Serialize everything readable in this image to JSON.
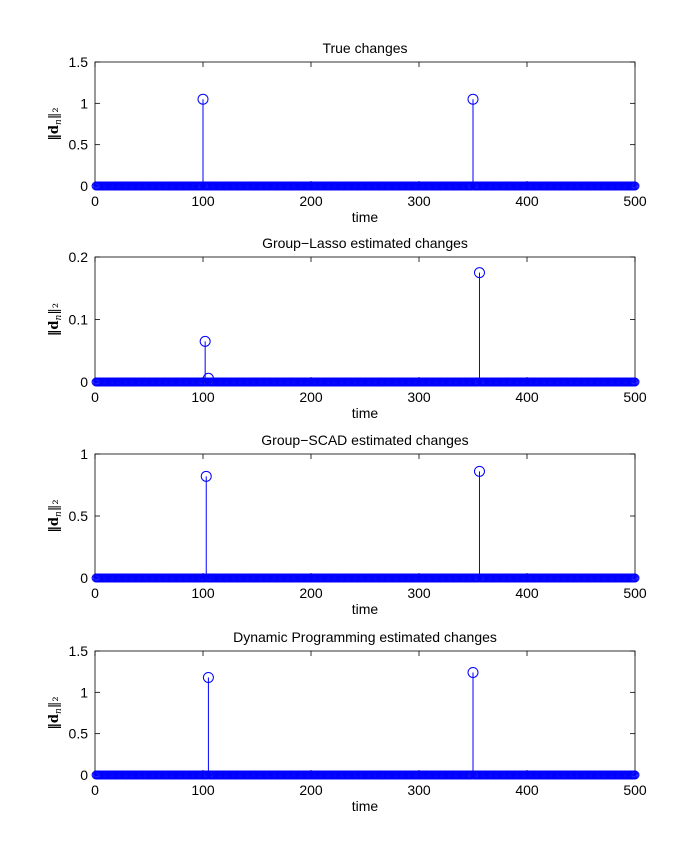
{
  "chart_data": [
    {
      "type": "stem",
      "title": "True changes",
      "xlabel": "time",
      "ylabel": "‖d",
      "ylabel_sub": "n",
      "ylabel_end": "‖₂",
      "xlim": [
        0,
        500
      ],
      "ylim": [
        0,
        1.5
      ],
      "xticks": [
        "0",
        "100",
        "200",
        "300",
        "400",
        "500"
      ],
      "yticks": [
        "0",
        "0.5",
        "1",
        "1.5"
      ],
      "ytick_values": [
        0,
        0.5,
        1,
        1.5
      ],
      "n_points": 500,
      "spikes": [
        {
          "x": 100,
          "y": 1.05
        },
        {
          "x": 350,
          "y": 1.05
        }
      ],
      "color": "#0000ff"
    },
    {
      "type": "stem",
      "title": "Group−Lasso estimated changes",
      "xlabel": "time",
      "ylabel": "‖d",
      "ylabel_sub": "n",
      "ylabel_end": "‖₂",
      "xlim": [
        0,
        500
      ],
      "ylim": [
        0,
        0.2
      ],
      "xticks": [
        "0",
        "100",
        "200",
        "300",
        "400",
        "500"
      ],
      "yticks": [
        "0",
        "0.1",
        "0.2"
      ],
      "ytick_values": [
        0,
        0.1,
        0.2
      ],
      "n_points": 500,
      "spikes": [
        {
          "x": 102,
          "y": 0.065
        },
        {
          "x": 105,
          "y": 0.006
        },
        {
          "x": 356,
          "y": 0.175
        }
      ],
      "color": "#0000ff"
    },
    {
      "type": "stem",
      "title": "Group−SCAD estimated changes",
      "xlabel": "time",
      "ylabel": "‖d",
      "ylabel_sub": "n",
      "ylabel_end": "‖₂",
      "xlim": [
        0,
        500
      ],
      "ylim": [
        0,
        1
      ],
      "xticks": [
        "0",
        "100",
        "200",
        "300",
        "400",
        "500"
      ],
      "yticks": [
        "0",
        "0.5",
        "1"
      ],
      "ytick_values": [
        0,
        0.5,
        1
      ],
      "n_points": 500,
      "spikes": [
        {
          "x": 103,
          "y": 0.82
        },
        {
          "x": 356,
          "y": 0.86
        }
      ],
      "color": "#0000ff"
    },
    {
      "type": "stem",
      "title": "Dynamic Programming estimated changes",
      "xlabel": "time",
      "ylabel": "‖d",
      "ylabel_sub": "n",
      "ylabel_end": "‖₂",
      "xlim": [
        0,
        500
      ],
      "ylim": [
        0,
        1.5
      ],
      "xticks": [
        "0",
        "100",
        "200",
        "300",
        "400",
        "500"
      ],
      "yticks": [
        "0",
        "0.5",
        "1",
        "1.5"
      ],
      "ytick_values": [
        0,
        0.5,
        1,
        1.5
      ],
      "n_points": 500,
      "spikes": [
        {
          "x": 105,
          "y": 1.18
        },
        {
          "x": 350,
          "y": 1.24
        }
      ],
      "color": "#0000ff"
    }
  ]
}
